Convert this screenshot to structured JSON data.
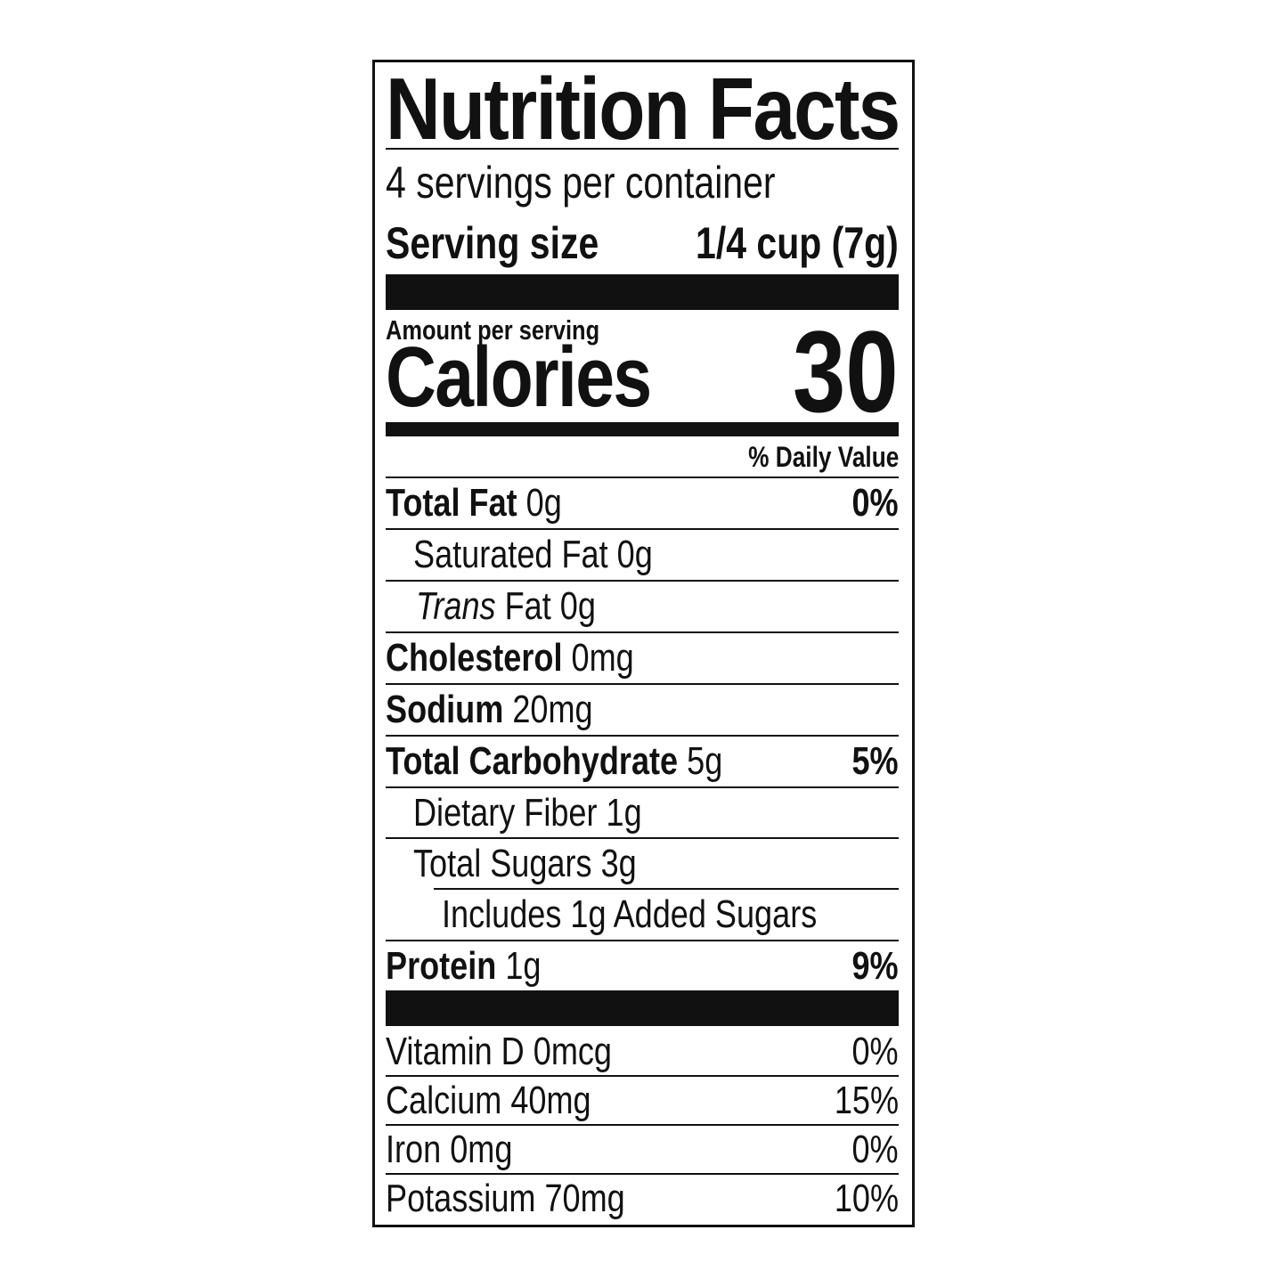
{
  "header": {
    "title": "Nutrition Facts",
    "servings": "4 servings per container",
    "serving_size_label": "Serving size",
    "serving_size": "1/4 cup (7g)"
  },
  "calories": {
    "label_top": "Amount per serving",
    "label": "Calories",
    "value": "30"
  },
  "daily_value_header": "% Daily Value",
  "nutrients": [
    {
      "name": "Total Fat",
      "amount": "0g",
      "dv": "0%"
    },
    {
      "name": "Saturated Fat",
      "amount": "0g"
    },
    {
      "name_italic": "Trans",
      "name": "Fat",
      "amount": "0g"
    },
    {
      "name": "Cholesterol",
      "amount": "0mg"
    },
    {
      "name": "Sodium",
      "amount": "20mg"
    },
    {
      "name": "Total Carbohydrate",
      "amount": "5g",
      "dv": "5%"
    },
    {
      "name": "Dietary Fiber",
      "amount": "1g"
    },
    {
      "name": "Total Sugars",
      "amount": "3g"
    },
    {
      "name": "Includes 1g Added Sugars"
    },
    {
      "name": "Protein",
      "amount": "1g",
      "dv": "9%"
    }
  ],
  "vitamins": [
    {
      "name": "Vitamin D",
      "amount": "0mcg",
      "dv": "0%"
    },
    {
      "name": "Calcium",
      "amount": "40mg",
      "dv": "15%"
    },
    {
      "name": "Iron",
      "amount": "0mg",
      "dv": "0%"
    },
    {
      "name": "Potassium",
      "amount": "70mg",
      "dv": "10%"
    }
  ]
}
